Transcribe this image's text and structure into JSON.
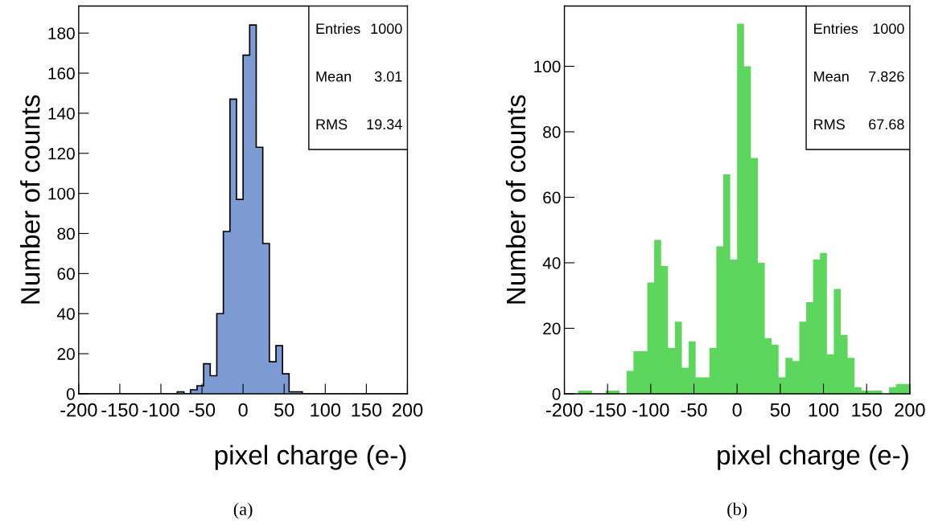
{
  "chart_data": [
    {
      "type": "histogram",
      "title": "(a)",
      "xlabel": "pixel charge (e-)",
      "ylabel": "Number of counts",
      "bins": [
        -200,
        -192,
        -184,
        -176,
        -168,
        -160,
        -152,
        -144,
        -136,
        -128,
        -120,
        -112,
        -104,
        -96,
        -88,
        -80,
        -72,
        -64,
        -56,
        -48,
        -40,
        -32,
        -24,
        -16,
        -8,
        0,
        8,
        16,
        24,
        32,
        40,
        48,
        56,
        64,
        72,
        80,
        88,
        96,
        104,
        112,
        120,
        128,
        136,
        144,
        152,
        160,
        168,
        176,
        184,
        192,
        200
      ],
      "values": [
        0,
        0,
        0,
        0,
        0,
        0,
        0,
        0,
        0,
        0,
        0,
        0,
        0,
        0,
        0,
        1,
        0,
        2,
        4,
        15,
        9,
        40,
        81,
        147,
        97,
        169,
        184,
        123,
        75,
        16,
        24,
        10,
        1,
        1,
        0,
        0,
        0,
        0,
        0,
        0,
        0,
        0,
        0,
        0,
        0,
        0,
        0,
        0,
        0,
        0
      ],
      "color": "#7b9bd2",
      "line_style": "solid",
      "xlim": [
        -200,
        200
      ],
      "xticks": [
        -200,
        -150,
        -100,
        -50,
        0,
        50,
        100,
        150,
        200
      ],
      "ylim": [
        0,
        193.5
      ],
      "yticks": [
        0,
        20,
        40,
        60,
        80,
        100,
        120,
        140,
        160,
        180
      ],
      "grid": false,
      "annotations": [
        "Entries",
        "1000",
        "Mean",
        "3.01",
        "RMS",
        "19.34"
      ]
    },
    {
      "type": "histogram",
      "title": "(b)",
      "xlabel": "pixel charge (e-)",
      "ylabel": "Number of counts",
      "bins": [
        -200,
        -192,
        -184,
        -176,
        -168,
        -160,
        -152,
        -144,
        -136,
        -128,
        -120,
        -112,
        -104,
        -96,
        -88,
        -80,
        -72,
        -64,
        -56,
        -48,
        -40,
        -32,
        -24,
        -16,
        -8,
        0,
        8,
        16,
        24,
        32,
        40,
        48,
        56,
        64,
        72,
        80,
        88,
        96,
        104,
        112,
        120,
        128,
        136,
        144,
        152,
        160,
        168,
        176,
        184,
        192,
        200
      ],
      "values": [
        0,
        0,
        1,
        1,
        0,
        0,
        1,
        1,
        0,
        7,
        13,
        13,
        34,
        47,
        39,
        14,
        22,
        8,
        16,
        5,
        5,
        14,
        45,
        67,
        41,
        113,
        100,
        72,
        40,
        17,
        15,
        5,
        11,
        10,
        22,
        28,
        41,
        43,
        12,
        32,
        18,
        11,
        2,
        1,
        1,
        1,
        0,
        2,
        3,
        3
      ],
      "color": "#5cd65c",
      "xlim": [
        -200,
        200
      ],
      "xticks": [
        -200,
        -150,
        -100,
        -50,
        0,
        50,
        100,
        150,
        200
      ],
      "ylim": [
        0,
        118.4
      ],
      "yticks": [
        0,
        20,
        40,
        60,
        80,
        100
      ],
      "grid": false,
      "annotations": [
        "Entries",
        "1000",
        "Mean",
        "7.826",
        "RMS",
        "67.68"
      ]
    }
  ]
}
